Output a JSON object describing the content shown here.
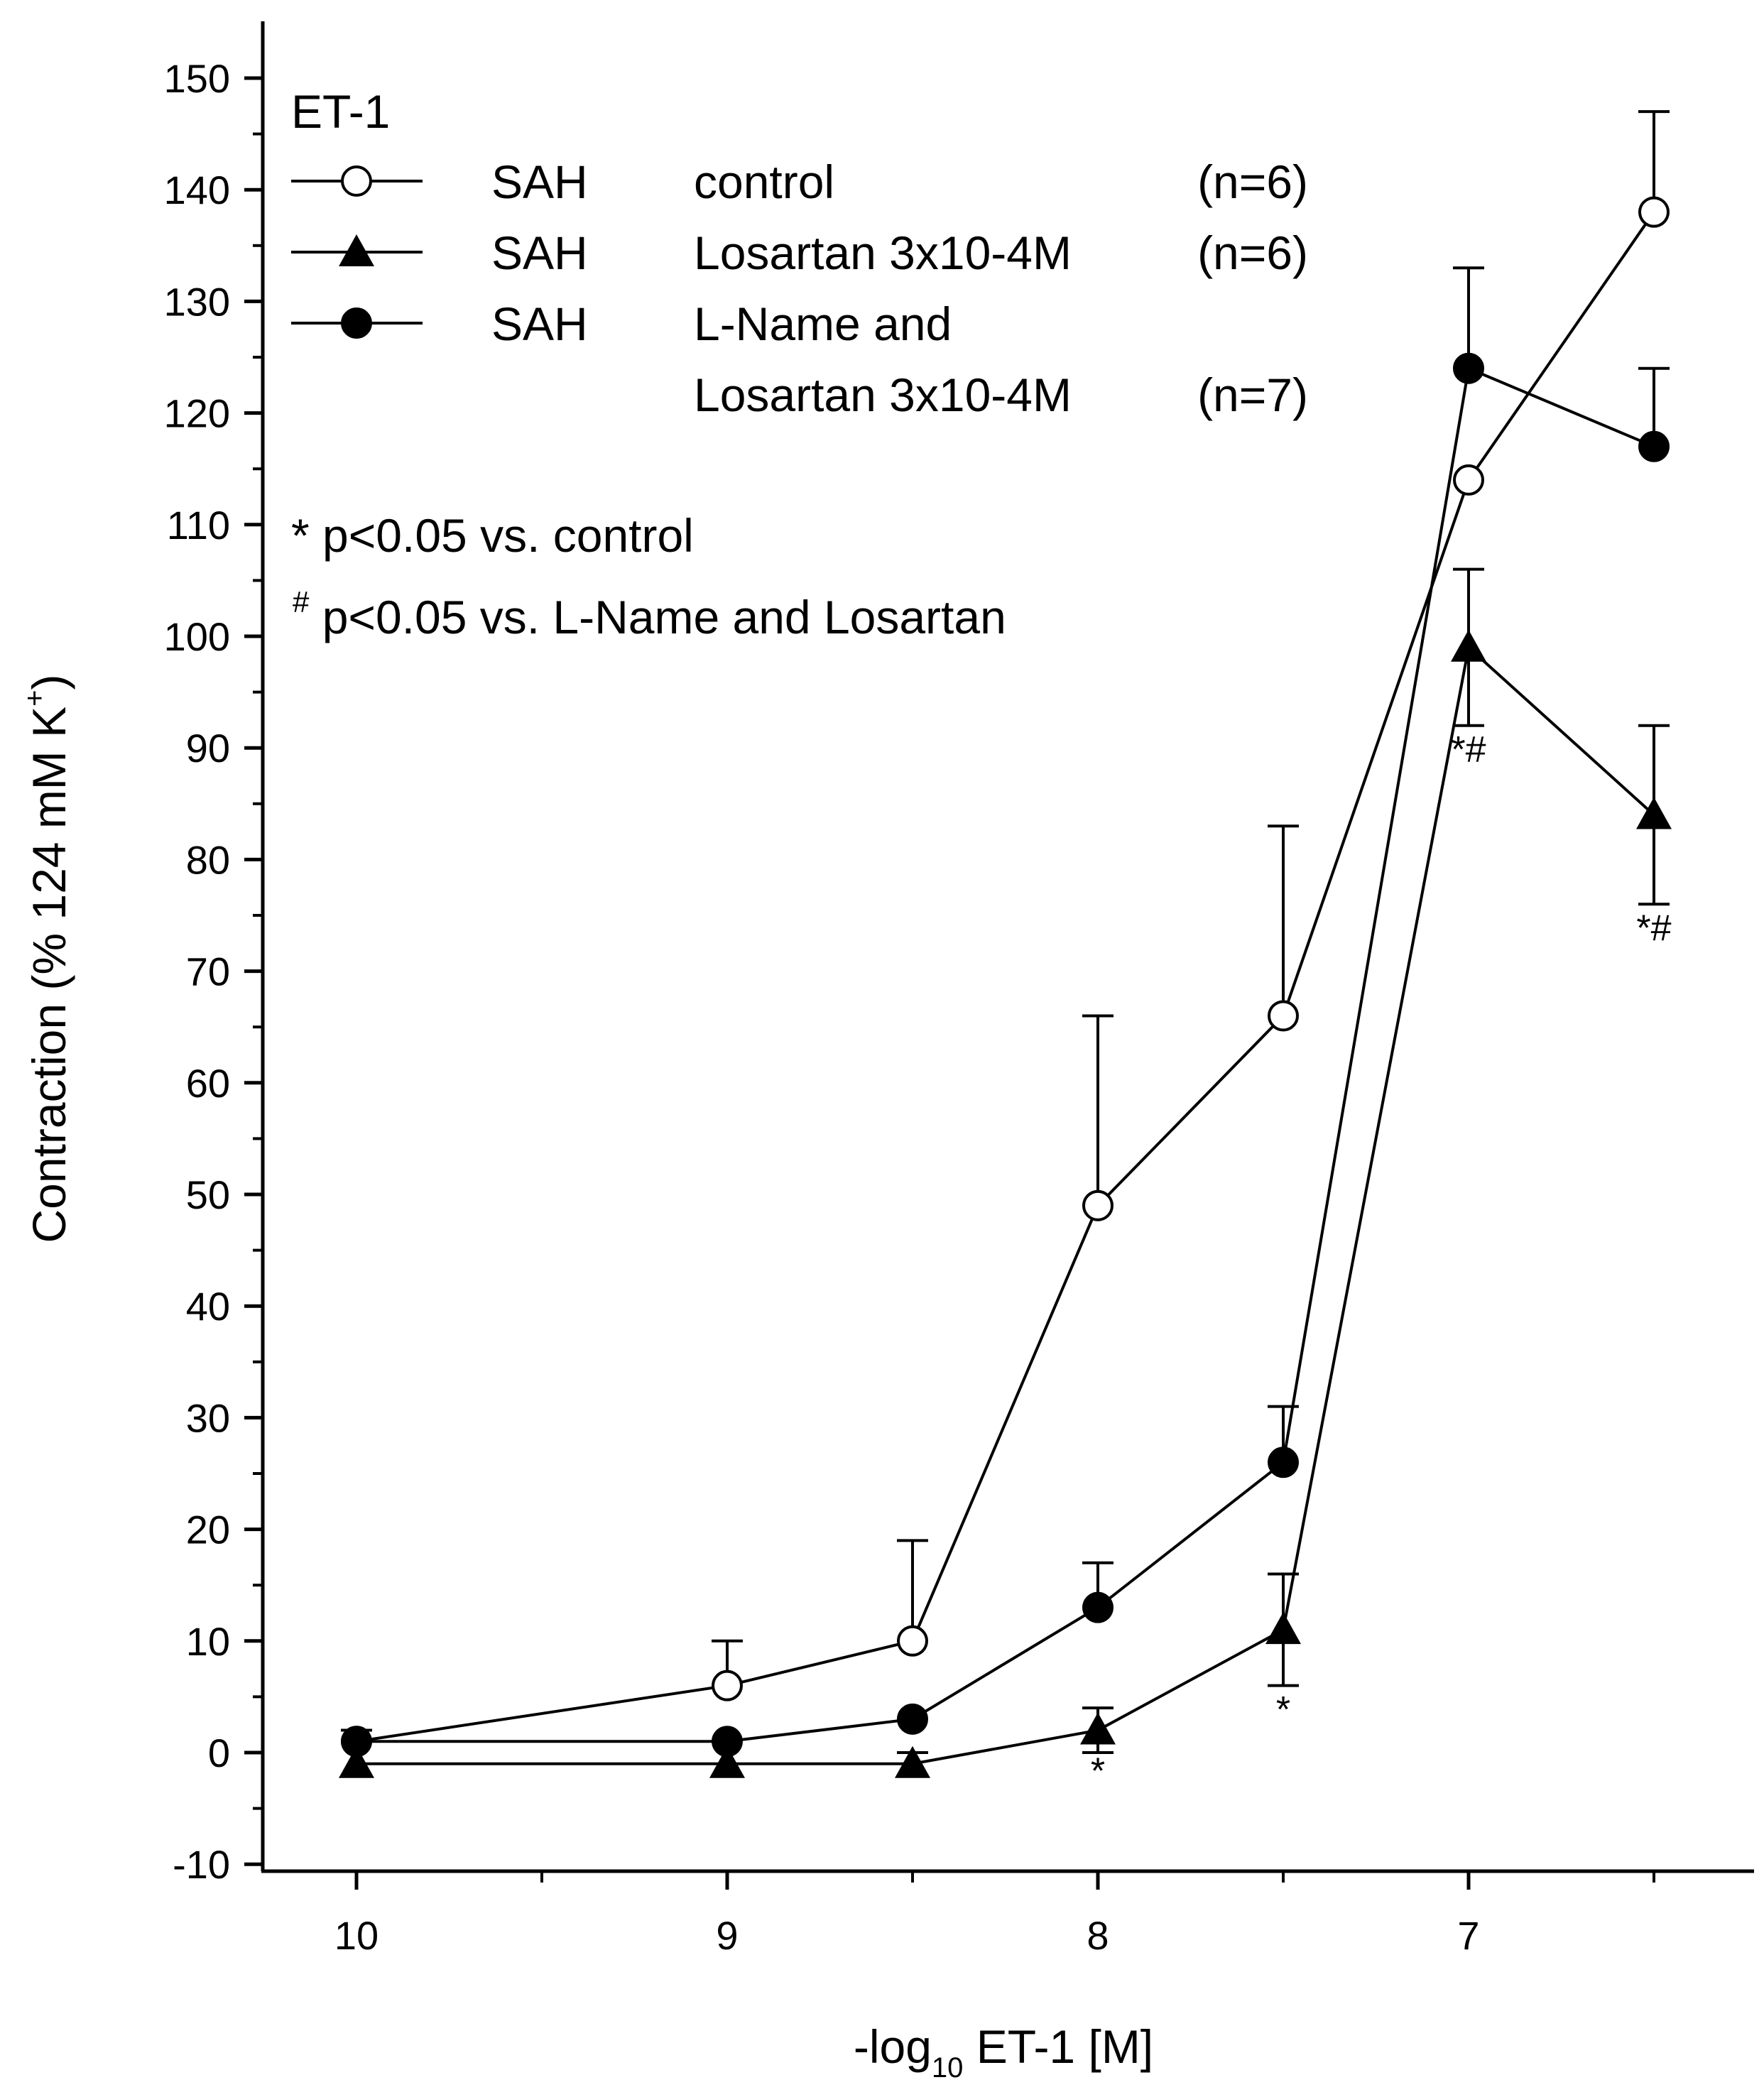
{
  "chart_data": {
    "type": "line",
    "title": "ET-1",
    "xlabel": {
      "prefix": "-log",
      "sub": "10",
      "suffix": " ET-1 [M]"
    },
    "ylabel": {
      "main": "Contraction (% 124 mM K",
      "sup": "+",
      "end": ")"
    },
    "xlim": [
      10.25,
      6.3
    ],
    "ylim": [
      -10,
      152
    ],
    "x_ticks": [
      10,
      9,
      8,
      7
    ],
    "x_tick_labels": [
      "10",
      "9",
      "8",
      "7"
    ],
    "x_minor_ticks": [
      9.5,
      8.5,
      7.5,
      6.5
    ],
    "y_ticks": [
      -10,
      0,
      10,
      20,
      30,
      40,
      50,
      60,
      70,
      80,
      90,
      100,
      110,
      120,
      130,
      140,
      150
    ],
    "y_tick_labels": [
      "-10",
      "0",
      "10",
      "20",
      "30",
      "40",
      "50",
      "60",
      "70",
      "80",
      "90",
      "100",
      "110",
      "120",
      "130",
      "140",
      "150"
    ],
    "series": [
      {
        "key": "control",
        "group": "SAH",
        "name": "control",
        "n_label": "(n=6)",
        "marker": "open-circle",
        "x": [
          10,
          9,
          8.5,
          8,
          7.5,
          7,
          6.5
        ],
        "y": [
          1,
          6,
          10,
          49,
          66,
          114,
          138
        ],
        "err_up": [
          null,
          4,
          9,
          17,
          17,
          null,
          9
        ]
      },
      {
        "key": "losartan",
        "group": "SAH",
        "name": "Losartan 3x10-4M",
        "n_label": "(n=6)",
        "marker": "filled-triangle",
        "x": [
          10,
          9,
          8.5,
          8,
          7.5,
          7,
          6.5
        ],
        "y": [
          -1,
          -1,
          -1,
          2,
          11,
          99,
          84
        ],
        "err_up": [
          null,
          null,
          1,
          2,
          5,
          7,
          8
        ],
        "err_down": [
          null,
          null,
          null,
          2,
          5,
          7,
          8
        ]
      },
      {
        "key": "lname_losartan",
        "group": "SAH",
        "name": "L-Name and",
        "name_line2": "Losartan 3x10-4M",
        "n_label": "(n=7)",
        "marker": "filled-circle",
        "x": [
          10,
          9,
          8.5,
          8,
          7.5,
          7,
          6.5
        ],
        "y": [
          1,
          1,
          3,
          13,
          26,
          124,
          117
        ],
        "err_up": [
          1,
          null,
          null,
          4,
          5,
          9,
          7
        ]
      }
    ],
    "significance_marks": [
      {
        "x": 8,
        "y": -1.5,
        "text": "*"
      },
      {
        "x": 7.5,
        "y": 4,
        "text": "*"
      },
      {
        "x": 7,
        "y": 90,
        "text": "*#"
      },
      {
        "x": 6.5,
        "y": 74,
        "text": "*#"
      }
    ],
    "annotations": {
      "line1": "* p<0.05 vs. control",
      "line2_sup": "#",
      "line2": " p<0.05 vs. L-Name and Losartan"
    }
  }
}
